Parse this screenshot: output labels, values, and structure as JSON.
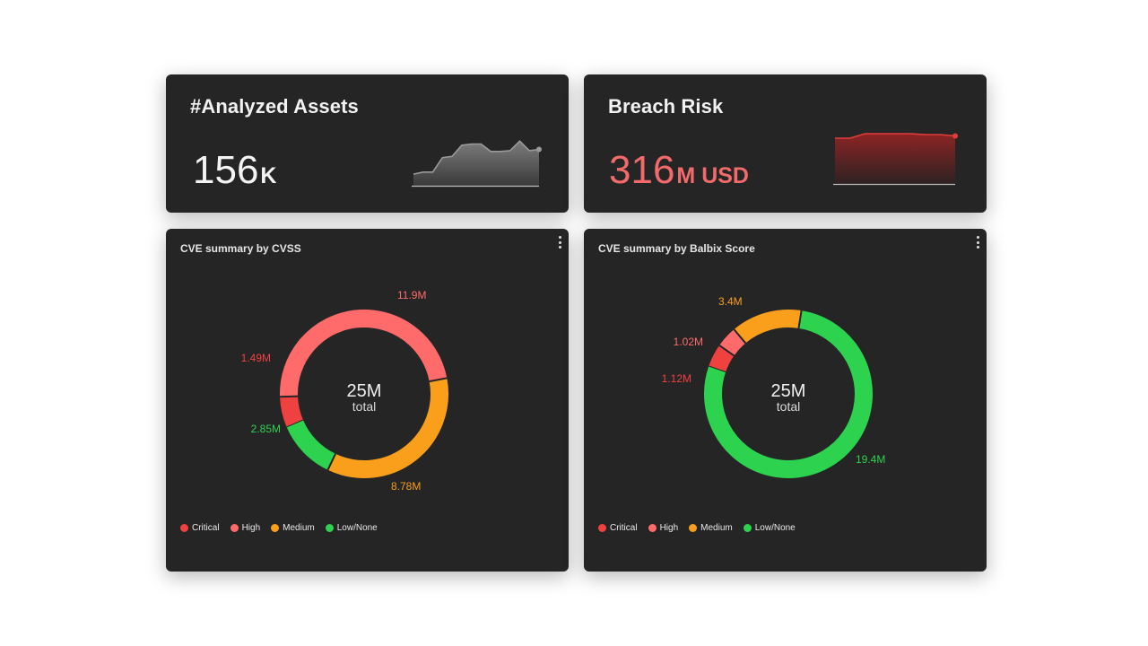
{
  "colors": {
    "critical": "#f04141",
    "high": "#ff6b6b",
    "medium": "#fa9f1b",
    "low": "#2dd24f",
    "spark_gray": "#8a8a8a",
    "spark_red": "#e23b3b"
  },
  "assets": {
    "title": "#Analyzed Assets",
    "value": "156",
    "unit": "K",
    "spark": [
      0.15,
      0.2,
      0.2,
      0.55,
      0.58,
      0.85,
      0.88,
      0.88,
      0.7,
      0.7,
      0.72,
      0.95,
      0.72,
      0.75
    ]
  },
  "risk": {
    "title": "Breach Risk",
    "value": "316",
    "unit": "M USD",
    "spark": [
      0.9,
      0.9,
      1.0,
      1.0,
      1.0,
      1.0,
      0.98,
      0.98,
      0.95
    ]
  },
  "legend": [
    {
      "label": "Critical",
      "color_key": "critical"
    },
    {
      "label": "High",
      "color_key": "high"
    },
    {
      "label": "Medium",
      "color_key": "medium"
    },
    {
      "label": "Low/None",
      "color_key": "low"
    }
  ],
  "cvss": {
    "title": "CVE summary by CVSS",
    "center_value": "25M",
    "center_label": "total",
    "chart_data": {
      "type": "pie",
      "categories": [
        "Critical",
        "High",
        "Medium",
        "Low/None"
      ],
      "values": [
        1.49,
        11.9,
        8.78,
        2.85
      ],
      "labels": [
        "1.49M",
        "11.9M",
        "8.78M",
        "2.85M"
      ]
    }
  },
  "balbix": {
    "title": "CVE summary by Balbix Score",
    "center_value": "25M",
    "center_label": "total",
    "chart_data": {
      "type": "pie",
      "categories": [
        "Critical",
        "High",
        "Medium",
        "Low/None"
      ],
      "values": [
        1.12,
        1.02,
        3.4,
        19.4
      ],
      "labels": [
        "1.12M",
        "1.02M",
        "3.4M",
        "19.4M"
      ]
    }
  }
}
